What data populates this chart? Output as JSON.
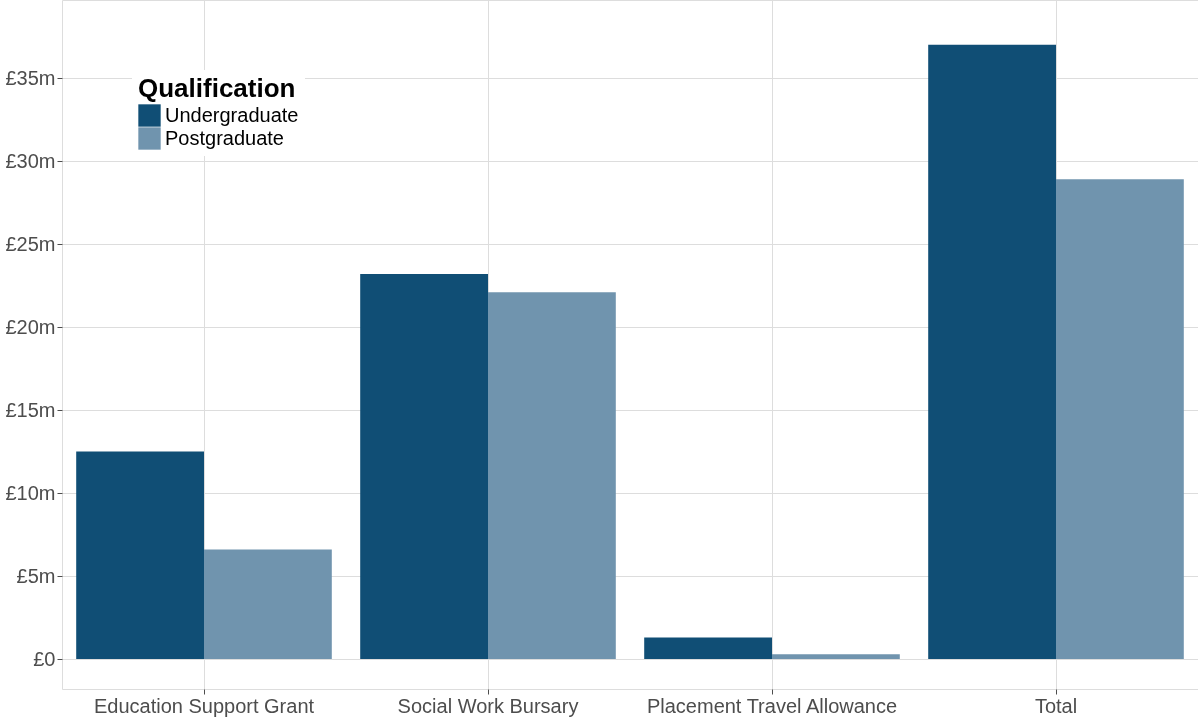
{
  "chart_data": {
    "type": "bar",
    "categories": [
      "Education Support Grant",
      "Social Work Bursary",
      "Placement Travel Allowance",
      "Total"
    ],
    "series": [
      {
        "name": "Undergraduate",
        "color": "#104e75",
        "values": [
          12.5,
          23.2,
          1.3,
          37.0
        ]
      },
      {
        "name": "Postgraduate",
        "color": "#7094ae",
        "values": [
          6.6,
          22.1,
          0.3,
          28.9
        ]
      }
    ],
    "legend_title": "Qualification",
    "legend": "top left",
    "grid": true,
    "ylim": [
      -1.8,
      39.7
    ],
    "yticks": [
      {
        "value": 0,
        "label": "£0"
      },
      {
        "value": 5,
        "label": "£5m"
      },
      {
        "value": 10,
        "label": "£10m"
      },
      {
        "value": 15,
        "label": "£15m"
      },
      {
        "value": 20,
        "label": "£20m"
      },
      {
        "value": 25,
        "label": "£25m"
      },
      {
        "value": 30,
        "label": "£30m"
      },
      {
        "value": 35,
        "label": "£35m"
      }
    ]
  }
}
